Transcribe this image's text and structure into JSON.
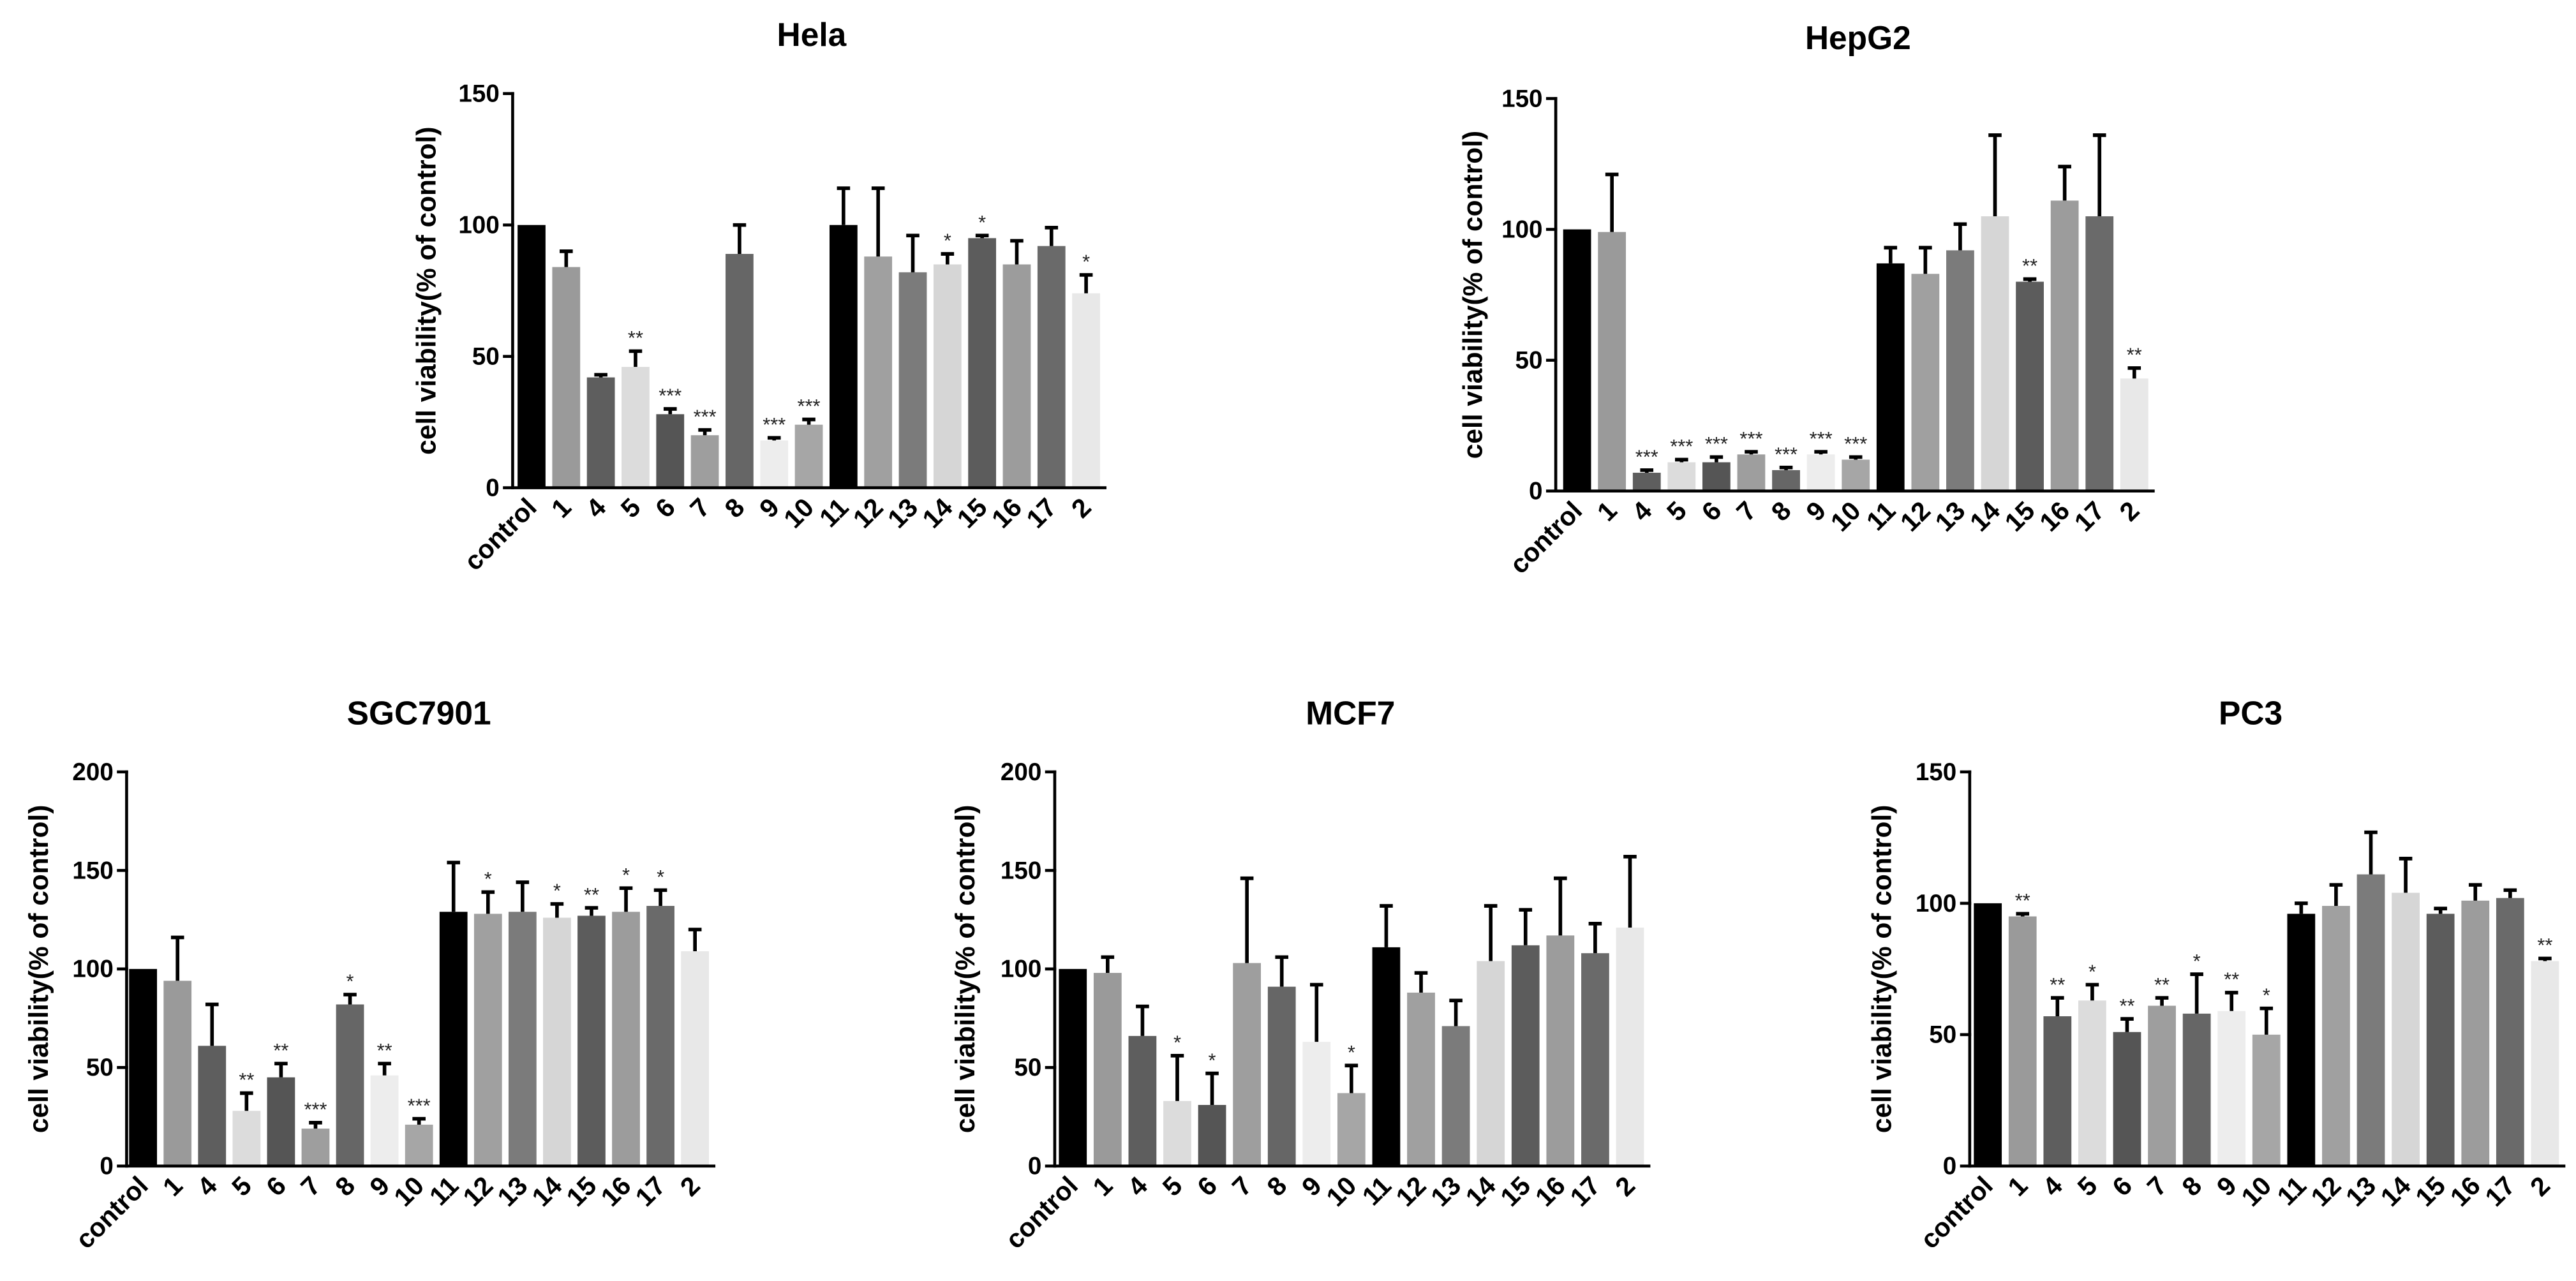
{
  "chart_data": [
    {
      "type": "bar",
      "title": "Hela",
      "ylabel": "cell viability(% of control)",
      "ylim": [
        0,
        150
      ],
      "yticks": [
        0,
        50,
        100,
        150
      ],
      "grid": false,
      "categories": [
        "control",
        "1",
        "4",
        "5",
        "6",
        "7",
        "8",
        "9",
        "10",
        "11",
        "12",
        "13",
        "14",
        "15",
        "16",
        "17",
        "2"
      ],
      "values": [
        100,
        84,
        42,
        46,
        28,
        20,
        89,
        18,
        24,
        100,
        88,
        82,
        85,
        95,
        85,
        92,
        74
      ],
      "errors": [
        0,
        6,
        1,
        6,
        2,
        2,
        11,
        1,
        2,
        14,
        26,
        14,
        4,
        1,
        9,
        7,
        7
      ],
      "significance": [
        "",
        "",
        "",
        "**",
        "***",
        "***",
        "",
        "***",
        "***",
        "",
        "",
        "",
        "*",
        "*",
        "",
        "",
        "*"
      ],
      "bar_colors": [
        "#000000",
        "#9a9a9a",
        "#5e5e5e",
        "#dcdcdc",
        "#555555",
        "#9e9e9e",
        "#666666",
        "#ededed",
        "#a6a6a6",
        "#000000",
        "#a0a0a0",
        "#7b7b7b",
        "#d6d6d6",
        "#5c5c5c",
        "#9c9c9c",
        "#6a6a6a",
        "#e8e8e8"
      ]
    },
    {
      "type": "bar",
      "title": "HepG2",
      "ylabel": "cell viability(% of control)",
      "ylim": [
        0,
        150
      ],
      "yticks": [
        0,
        50,
        100,
        150
      ],
      "grid": false,
      "categories": [
        "control",
        "1",
        "4",
        "5",
        "6",
        "7",
        "8",
        "9",
        "10",
        "11",
        "12",
        "13",
        "14",
        "15",
        "16",
        "17",
        "2"
      ],
      "values": [
        100,
        99,
        7,
        11,
        11,
        14,
        8,
        14,
        12,
        87,
        83,
        92,
        105,
        80,
        111,
        105,
        43
      ],
      "errors": [
        0,
        22,
        1,
        1,
        2,
        1,
        1,
        1,
        1,
        6,
        10,
        10,
        31,
        1,
        13,
        31,
        4
      ],
      "significance": [
        "",
        "",
        "***",
        "***",
        "***",
        "***",
        "***",
        "***",
        "***",
        "",
        "",
        "",
        "",
        "**",
        "",
        "",
        "**"
      ],
      "bar_colors": [
        "#000000",
        "#9a9a9a",
        "#5e5e5e",
        "#dcdcdc",
        "#555555",
        "#9e9e9e",
        "#666666",
        "#ededed",
        "#a6a6a6",
        "#000000",
        "#a0a0a0",
        "#7b7b7b",
        "#d6d6d6",
        "#5c5c5c",
        "#9c9c9c",
        "#6a6a6a",
        "#e8e8e8"
      ]
    },
    {
      "type": "bar",
      "title": "SGC7901",
      "ylabel": "cell viability(% of control)",
      "ylim": [
        0,
        200
      ],
      "yticks": [
        0,
        50,
        100,
        150,
        200
      ],
      "grid": false,
      "categories": [
        "control",
        "1",
        "4",
        "5",
        "6",
        "7",
        "8",
        "9",
        "10",
        "11",
        "12",
        "13",
        "14",
        "15",
        "16",
        "17",
        "2"
      ],
      "values": [
        100,
        94,
        61,
        28,
        45,
        19,
        82,
        46,
        21,
        129,
        128,
        129,
        126,
        127,
        129,
        132,
        109
      ],
      "errors": [
        0,
        22,
        21,
        9,
        7,
        3,
        5,
        6,
        3,
        25,
        11,
        15,
        7,
        4,
        12,
        8,
        11
      ],
      "significance": [
        "",
        "",
        "",
        "**",
        "**",
        "***",
        "*",
        "**",
        "***",
        "",
        "*",
        "",
        "*",
        "**",
        "*",
        "*",
        ""
      ],
      "bar_colors": [
        "#000000",
        "#9a9a9a",
        "#5e5e5e",
        "#dcdcdc",
        "#555555",
        "#9e9e9e",
        "#666666",
        "#ededed",
        "#a6a6a6",
        "#000000",
        "#a0a0a0",
        "#7b7b7b",
        "#d6d6d6",
        "#5c5c5c",
        "#9c9c9c",
        "#6a6a6a",
        "#e8e8e8"
      ]
    },
    {
      "type": "bar",
      "title": "MCF7",
      "ylabel": "cell viability(% of control)",
      "ylim": [
        0,
        200
      ],
      "yticks": [
        0,
        50,
        100,
        150,
        200
      ],
      "grid": false,
      "categories": [
        "control",
        "1",
        "4",
        "5",
        "6",
        "7",
        "8",
        "9",
        "10",
        "11",
        "12",
        "13",
        "14",
        "15",
        "16",
        "17",
        "2"
      ],
      "values": [
        100,
        98,
        66,
        33,
        31,
        103,
        91,
        63,
        37,
        111,
        88,
        71,
        104,
        112,
        117,
        108,
        121
      ],
      "errors": [
        0,
        8,
        15,
        23,
        16,
        43,
        15,
        29,
        14,
        21,
        10,
        13,
        28,
        18,
        29,
        15,
        36
      ],
      "significance": [
        "",
        "",
        "",
        "*",
        "*",
        "",
        "",
        "",
        "*",
        "",
        "",
        "",
        "",
        "",
        "",
        "",
        ""
      ],
      "bar_colors": [
        "#000000",
        "#9a9a9a",
        "#5e5e5e",
        "#dcdcdc",
        "#555555",
        "#9e9e9e",
        "#666666",
        "#ededed",
        "#a6a6a6",
        "#000000",
        "#a0a0a0",
        "#7b7b7b",
        "#d6d6d6",
        "#5c5c5c",
        "#9c9c9c",
        "#6a6a6a",
        "#e8e8e8"
      ]
    },
    {
      "type": "bar",
      "title": "PC3",
      "ylabel": "cell viability(% of control)",
      "ylim": [
        0,
        150
      ],
      "yticks": [
        0,
        50,
        100,
        150
      ],
      "grid": false,
      "categories": [
        "control",
        "1",
        "4",
        "5",
        "6",
        "7",
        "8",
        "9",
        "10",
        "11",
        "12",
        "13",
        "14",
        "15",
        "16",
        "17",
        "2"
      ],
      "values": [
        100,
        95,
        57,
        63,
        51,
        61,
        58,
        59,
        50,
        96,
        99,
        111,
        104,
        96,
        101,
        102,
        78
      ],
      "errors": [
        0,
        1,
        7,
        6,
        5,
        3,
        15,
        7,
        10,
        4,
        8,
        16,
        13,
        2,
        6,
        3,
        1
      ],
      "significance": [
        "",
        "**",
        "**",
        "*",
        "**",
        "**",
        "*",
        "**",
        "*",
        "",
        "",
        "",
        "",
        "",
        "",
        "",
        "**"
      ],
      "bar_colors": [
        "#000000",
        "#9a9a9a",
        "#5e5e5e",
        "#dcdcdc",
        "#555555",
        "#9e9e9e",
        "#666666",
        "#ededed",
        "#a6a6a6",
        "#000000",
        "#a0a0a0",
        "#7b7b7b",
        "#d6d6d6",
        "#5c5c5c",
        "#9c9c9c",
        "#6a6a6a",
        "#e8e8e8"
      ]
    }
  ]
}
